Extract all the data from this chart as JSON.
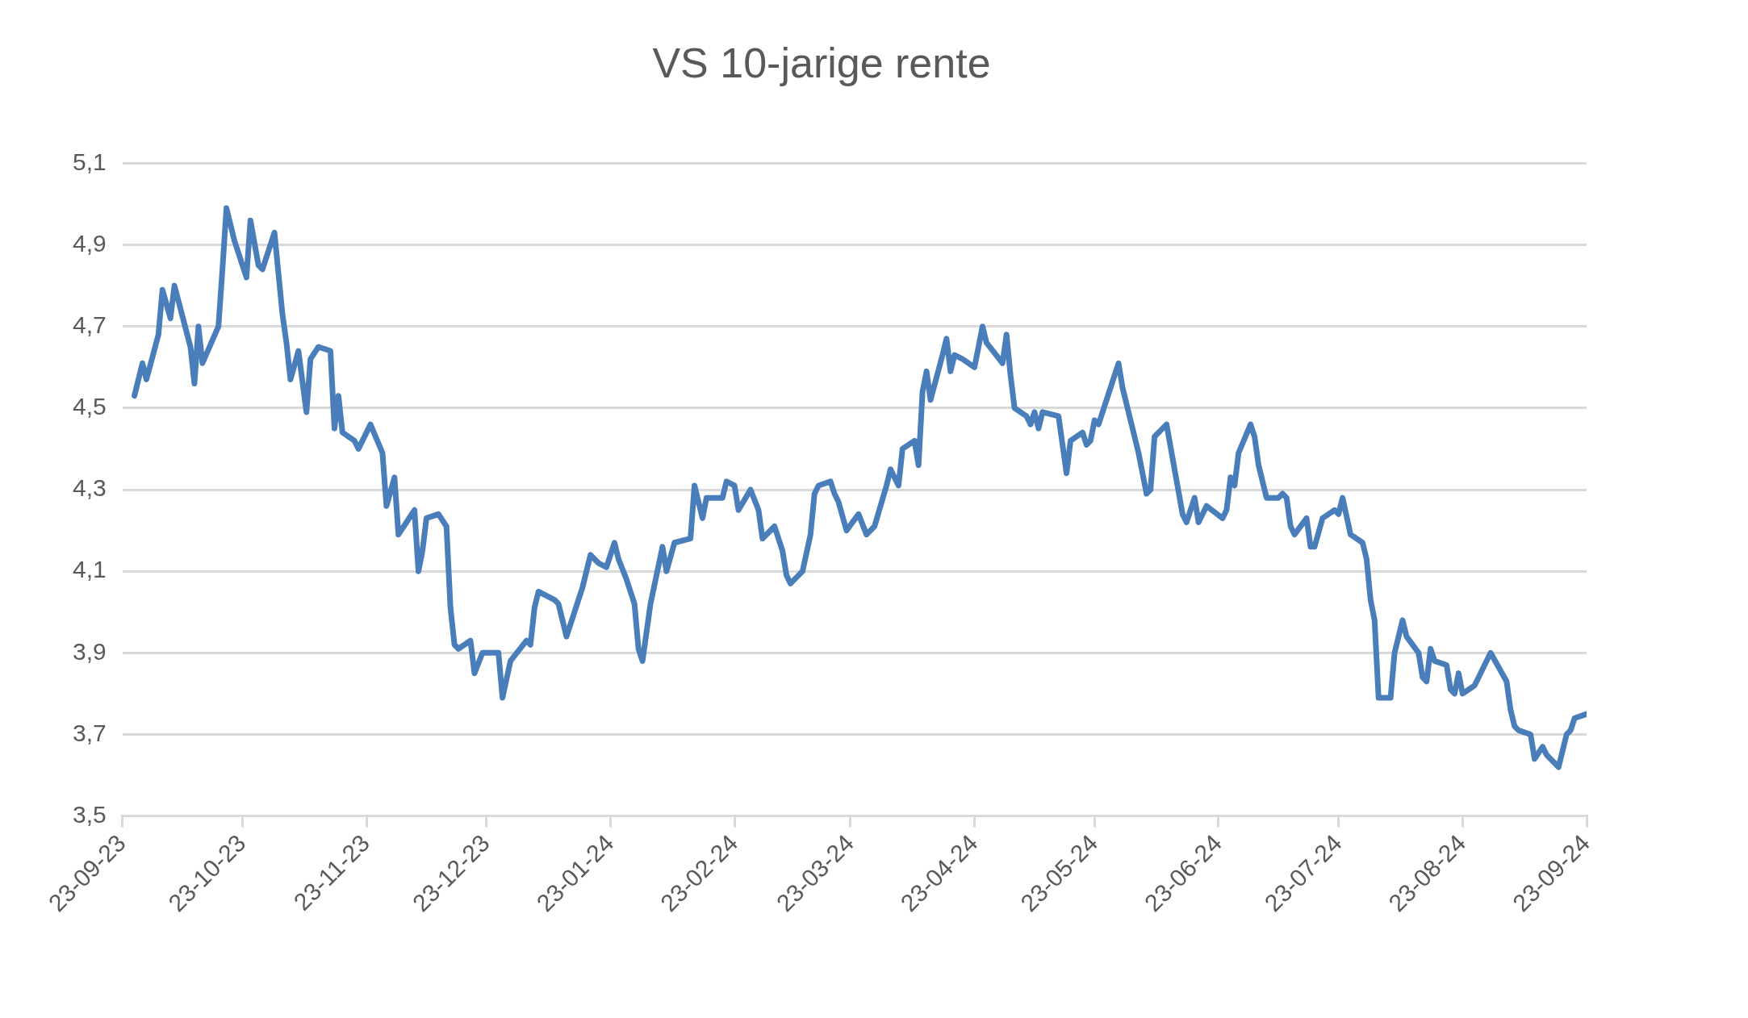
{
  "chart_data": {
    "type": "line",
    "title": "VS 10-jarige rente",
    "x": [
      "2023-09-26",
      "2023-09-28",
      "2023-09-29",
      "2023-10-02",
      "2023-10-03",
      "2023-10-05",
      "2023-10-06",
      "2023-10-10",
      "2023-10-11",
      "2023-10-12",
      "2023-10-13",
      "2023-10-17",
      "2023-10-18",
      "2023-10-19",
      "2023-10-21",
      "2023-10-24",
      "2023-10-25",
      "2023-10-27",
      "2023-10-28",
      "2023-10-31",
      "2023-11-02",
      "2023-11-03",
      "2023-11-04",
      "2023-11-06",
      "2023-11-08",
      "2023-11-09",
      "2023-11-11",
      "2023-11-14",
      "2023-11-15",
      "2023-11-16",
      "2023-11-17",
      "2023-11-20",
      "2023-11-21",
      "2023-11-24",
      "2023-11-27",
      "2023-11-28",
      "2023-11-30",
      "2023-12-01",
      "2023-12-05",
      "2023-12-06",
      "2023-12-07",
      "2023-12-08",
      "2023-12-11",
      "2023-12-13",
      "2023-12-14",
      "2023-12-15",
      "2023-12-16",
      "2023-12-19",
      "2023-12-20",
      "2023-12-22",
      "2023-12-26",
      "2023-12-27",
      "2023-12-29",
      "2024-01-02",
      "2024-01-03",
      "2024-01-04",
      "2024-01-05",
      "2024-01-09",
      "2024-01-10",
      "2024-01-12",
      "2024-01-16",
      "2024-01-18",
      "2024-01-20",
      "2024-01-22",
      "2024-01-24",
      "2024-01-25",
      "2024-01-27",
      "2024-01-29",
      "2024-01-30",
      "2024-01-31",
      "2024-02-02",
      "2024-02-05",
      "2024-02-06",
      "2024-02-08",
      "2024-02-12",
      "2024-02-13",
      "2024-02-15",
      "2024-02-16",
      "2024-02-20",
      "2024-02-21",
      "2024-02-23",
      "2024-02-24",
      "2024-02-27",
      "2024-02-29",
      "2024-03-01",
      "2024-03-04",
      "2024-03-06",
      "2024-03-07",
      "2024-03-08",
      "2024-03-11",
      "2024-03-13",
      "2024-03-14",
      "2024-03-15",
      "2024-03-18",
      "2024-03-19",
      "2024-03-20",
      "2024-03-22",
      "2024-03-25",
      "2024-03-27",
      "2024-03-29",
      "2024-04-01",
      "2024-04-02",
      "2024-04-04",
      "2024-04-05",
      "2024-04-08",
      "2024-04-09",
      "2024-04-10",
      "2024-04-11",
      "2024-04-12",
      "2024-04-15",
      "2024-04-16",
      "2024-04-17",
      "2024-04-18",
      "2024-04-20",
      "2024-04-23",
      "2024-04-25",
      "2024-04-26",
      "2024-04-30",
      "2024-05-01",
      "2024-05-02",
      "2024-05-03",
      "2024-05-06",
      "2024-05-07",
      "2024-05-08",
      "2024-05-09",
      "2024-05-10",
      "2024-05-14",
      "2024-05-15",
      "2024-05-16",
      "2024-05-17",
      "2024-05-20",
      "2024-05-21",
      "2024-05-22",
      "2024-05-23",
      "2024-05-24",
      "2024-05-27",
      "2024-05-29",
      "2024-05-30",
      "2024-06-03",
      "2024-06-05",
      "2024-06-06",
      "2024-06-07",
      "2024-06-10",
      "2024-06-14",
      "2024-06-15",
      "2024-06-17",
      "2024-06-18",
      "2024-06-20",
      "2024-06-24",
      "2024-06-25",
      "2024-06-26",
      "2024-06-27",
      "2024-06-28",
      "2024-07-01",
      "2024-07-02",
      "2024-07-03",
      "2024-07-05",
      "2024-07-08",
      "2024-07-09",
      "2024-07-10",
      "2024-07-11",
      "2024-07-12",
      "2024-07-15",
      "2024-07-16",
      "2024-07-17",
      "2024-07-19",
      "2024-07-22",
      "2024-07-23",
      "2024-07-24",
      "2024-07-26",
      "2024-07-29",
      "2024-07-30",
      "2024-07-31",
      "2024-08-01",
      "2024-08-02",
      "2024-08-05",
      "2024-08-06",
      "2024-08-08",
      "2024-08-09",
      "2024-08-12",
      "2024-08-13",
      "2024-08-14",
      "2024-08-15",
      "2024-08-16",
      "2024-08-19",
      "2024-08-20",
      "2024-08-21",
      "2024-08-22",
      "2024-08-23",
      "2024-08-26",
      "2024-08-27",
      "2024-08-28",
      "2024-08-30",
      "2024-09-03",
      "2024-09-04",
      "2024-09-05",
      "2024-09-06",
      "2024-09-09",
      "2024-09-10",
      "2024-09-12",
      "2024-09-13",
      "2024-09-16",
      "2024-09-17",
      "2024-09-18",
      "2024-09-19",
      "2024-09-20",
      "2024-09-23"
    ],
    "series": [
      {
        "color": "#4a7ebb",
        "values": [
          4.53,
          4.61,
          4.57,
          4.68,
          4.79,
          4.72,
          4.8,
          4.65,
          4.56,
          4.7,
          4.61,
          4.7,
          4.84,
          4.99,
          4.91,
          4.82,
          4.96,
          4.85,
          4.84,
          4.93,
          4.73,
          4.66,
          4.57,
          4.64,
          4.49,
          4.62,
          4.65,
          4.64,
          4.45,
          4.53,
          4.44,
          4.42,
          4.4,
          4.46,
          4.39,
          4.26,
          4.33,
          4.19,
          4.25,
          4.1,
          4.15,
          4.23,
          4.24,
          4.21,
          4.01,
          3.92,
          3.91,
          3.93,
          3.85,
          3.9,
          3.9,
          3.79,
          3.88,
          3.93,
          3.92,
          4.01,
          4.05,
          4.03,
          4.02,
          3.94,
          4.06,
          4.14,
          4.12,
          4.11,
          4.17,
          4.13,
          4.08,
          4.02,
          3.91,
          3.88,
          4.02,
          4.16,
          4.1,
          4.17,
          4.18,
          4.31,
          4.23,
          4.28,
          4.28,
          4.32,
          4.31,
          4.25,
          4.3,
          4.25,
          4.18,
          4.21,
          4.15,
          4.09,
          4.07,
          4.1,
          4.19,
          4.29,
          4.31,
          4.32,
          4.29,
          4.27,
          4.2,
          4.24,
          4.19,
          4.21,
          4.31,
          4.35,
          4.31,
          4.4,
          4.42,
          4.36,
          4.54,
          4.59,
          4.52,
          4.63,
          4.67,
          4.59,
          4.63,
          4.62,
          4.6,
          4.7,
          4.66,
          4.61,
          4.68,
          4.58,
          4.5,
          4.48,
          4.46,
          4.49,
          4.45,
          4.49,
          4.48,
          4.41,
          4.34,
          4.42,
          4.44,
          4.41,
          4.42,
          4.47,
          4.46,
          4.55,
          4.61,
          4.55,
          4.39,
          4.29,
          4.3,
          4.43,
          4.46,
          4.24,
          4.22,
          4.28,
          4.22,
          4.26,
          4.23,
          4.25,
          4.33,
          4.31,
          4.39,
          4.46,
          4.43,
          4.36,
          4.28,
          4.28,
          4.29,
          4.28,
          4.21,
          4.19,
          4.23,
          4.16,
          4.16,
          4.23,
          4.25,
          4.24,
          4.28,
          4.19,
          4.17,
          4.13,
          4.03,
          3.98,
          3.79,
          3.79,
          3.9,
          3.98,
          3.94,
          3.9,
          3.84,
          3.83,
          3.91,
          3.88,
          3.87,
          3.81,
          3.8,
          3.85,
          3.8,
          3.82,
          3.84,
          3.86,
          3.9,
          3.83,
          3.76,
          3.72,
          3.71,
          3.7,
          3.64,
          3.67,
          3.65,
          3.62,
          3.66,
          3.7,
          3.71,
          3.74,
          3.75
        ]
      }
    ],
    "xlim": [
      "2023-09-23",
      "2024-09-23"
    ],
    "xticks": [
      {
        "value": "2023-09-23",
        "label": "23-09-23"
      },
      {
        "value": "2023-10-23",
        "label": "23-10-23"
      },
      {
        "value": "2023-11-23",
        "label": "23-11-23"
      },
      {
        "value": "2023-12-23",
        "label": "23-12-23"
      },
      {
        "value": "2024-01-23",
        "label": "23-01-24"
      },
      {
        "value": "2024-02-23",
        "label": "23-02-24"
      },
      {
        "value": "2024-03-23",
        "label": "23-03-24"
      },
      {
        "value": "2024-04-23",
        "label": "23-04-24"
      },
      {
        "value": "2024-05-23",
        "label": "23-05-24"
      },
      {
        "value": "2024-06-23",
        "label": "23-06-24"
      },
      {
        "value": "2024-07-23",
        "label": "23-07-24"
      },
      {
        "value": "2024-08-23",
        "label": "23-08-24"
      },
      {
        "value": "2024-09-23",
        "label": "23-09-24"
      }
    ],
    "ylim": [
      3.5,
      5.1
    ],
    "yticks": [
      {
        "value": 3.5,
        "label": "3,5"
      },
      {
        "value": 3.7,
        "label": "3,7"
      },
      {
        "value": 3.9,
        "label": "3,9"
      },
      {
        "value": 4.1,
        "label": "4,1"
      },
      {
        "value": 4.3,
        "label": "4,3"
      },
      {
        "value": 4.5,
        "label": "4,5"
      },
      {
        "value": 4.7,
        "label": "4,7"
      },
      {
        "value": 4.9,
        "label": "4,9"
      },
      {
        "value": 5.1,
        "label": "5,1"
      }
    ],
    "grid": "y",
    "legend": false,
    "marker": "none",
    "line_style": "solid"
  }
}
